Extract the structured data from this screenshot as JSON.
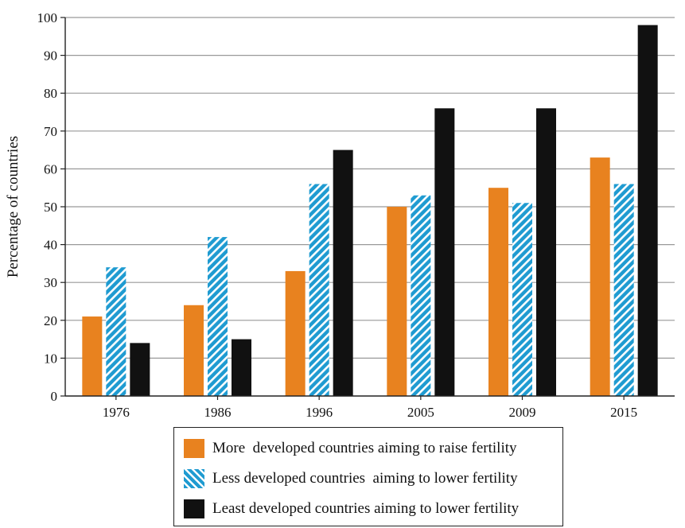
{
  "colors": {
    "more": "#e8821f",
    "less": "#1f9bd1",
    "least": "#111111",
    "grid": "#999999",
    "axis": "#222222"
  },
  "chart_data": {
    "type": "bar",
    "title": "",
    "xlabel": "",
    "ylabel": "Percentage of countries",
    "ylim": [
      0,
      100
    ],
    "yticks": [
      0,
      10,
      20,
      30,
      40,
      50,
      60,
      70,
      80,
      90,
      100
    ],
    "grid": "horizontal",
    "legend_position": "bottom",
    "categories": [
      "1976",
      "1986",
      "1996",
      "2005",
      "2009",
      "2015"
    ],
    "series": [
      {
        "name": "More  developed countries aiming to raise fertility",
        "pattern": "solid",
        "color": "#e8821f",
        "values": [
          21,
          24,
          33,
          50,
          55,
          63
        ]
      },
      {
        "name": "Less developed countries  aiming to lower fertility",
        "pattern": "hatched",
        "color": "#1f9bd1",
        "values": [
          34,
          42,
          56,
          53,
          51,
          56
        ]
      },
      {
        "name": "Least developed countries aiming to lower fertility",
        "pattern": "solid",
        "color": "#111111",
        "values": [
          14,
          15,
          65,
          76,
          76,
          98
        ]
      }
    ]
  }
}
